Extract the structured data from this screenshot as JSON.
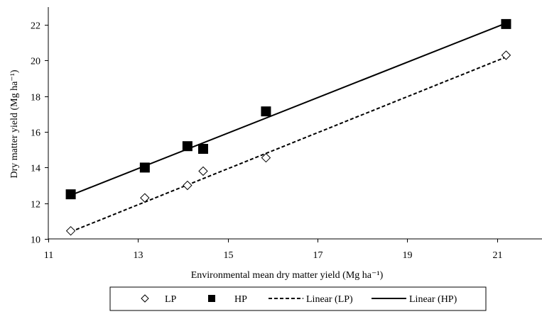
{
  "chart_data": {
    "type": "scatter",
    "xlabel": "Environmental mean dry matter yield (Mg ha⁻¹)",
    "ylabel": "Dry matter yield (Mg ha⁻¹)",
    "xlim": [
      11,
      22
    ],
    "ylim": [
      10,
      23
    ],
    "x_ticks": [
      11,
      13,
      15,
      17,
      19,
      21
    ],
    "y_ticks": [
      10,
      12,
      14,
      16,
      18,
      20,
      22
    ],
    "x_tick_labels": [
      "11",
      "13",
      "15",
      "17",
      "19",
      "21"
    ],
    "y_tick_labels": [
      "10",
      "12",
      "14",
      "16",
      "18",
      "20",
      "22"
    ],
    "grid": false,
    "legend_position": "bottom",
    "series": [
      {
        "name": "LP",
        "marker": "open-diamond",
        "color": "#000000",
        "x": [
          11.5,
          13.15,
          14.1,
          14.45,
          15.85,
          21.2
        ],
        "y": [
          10.45,
          12.3,
          13.0,
          13.8,
          14.55,
          20.3
        ]
      },
      {
        "name": "HP",
        "marker": "filled-square",
        "color": "#000000",
        "x": [
          11.5,
          13.15,
          14.1,
          14.45,
          15.85,
          21.2
        ],
        "y": [
          12.5,
          14.0,
          15.2,
          15.05,
          17.15,
          22.05
        ]
      }
    ],
    "trendlines": [
      {
        "name": "Linear (LP)",
        "of": "LP",
        "style": "dashed",
        "x": [
          11.5,
          21.2
        ],
        "y": [
          10.4,
          20.2
        ]
      },
      {
        "name": "Linear (HP)",
        "of": "HP",
        "style": "solid",
        "x": [
          11.5,
          21.2
        ],
        "y": [
          12.45,
          22.1
        ]
      }
    ],
    "legend": [
      {
        "label": "LP",
        "symbol": "open-diamond"
      },
      {
        "label": "HP",
        "symbol": "filled-square"
      },
      {
        "label": "Linear (LP)",
        "symbol": "dashed-line"
      },
      {
        "label": "Linear (HP)",
        "symbol": "solid-line"
      }
    ]
  }
}
